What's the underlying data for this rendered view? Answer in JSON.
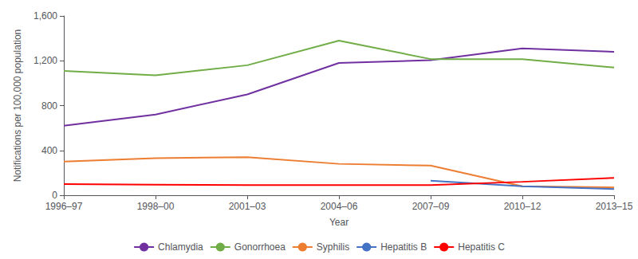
{
  "chart_data": {
    "type": "line",
    "categories": [
      "1996–97",
      "1998–00",
      "2001–03",
      "2004–06",
      "2007–09",
      "2010–12",
      "2013–15"
    ],
    "series": [
      {
        "name": "Chlamydia",
        "color": "#7030a0",
        "values": [
          620,
          720,
          900,
          1180,
          1205,
          1310,
          1280
        ]
      },
      {
        "name": "Gonorrhoea",
        "color": "#70ad47",
        "values": [
          1110,
          1070,
          1160,
          1380,
          1215,
          1215,
          1140
        ]
      },
      {
        "name": "Syphilis",
        "color": "#ed7d31",
        "values": [
          300,
          330,
          340,
          280,
          265,
          80,
          70
        ]
      },
      {
        "name": "Hepatitis B",
        "color": "#4472c4",
        "values": [
          null,
          null,
          null,
          null,
          130,
          80,
          55
        ]
      },
      {
        "name": "Hepatitis C",
        "color": "#ff0000",
        "values": [
          100,
          95,
          90,
          90,
          90,
          120,
          155
        ]
      }
    ],
    "ylim": [
      0,
      1600
    ],
    "yticks": [
      0,
      400,
      800,
      {
        "value": 1200,
        "label": "1,200"
      },
      {
        "value": 1600,
        "label": "1,600"
      }
    ],
    "ylabel": "Notifications per 100,000 population",
    "xlabel": "Year",
    "grid": false,
    "legend": "bottom"
  }
}
